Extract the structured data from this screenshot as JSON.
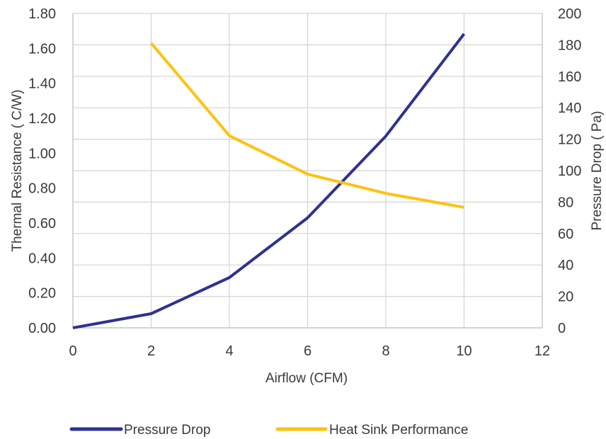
{
  "chart_data": {
    "type": "line",
    "title": "",
    "xlabel": "Airflow (CFM)",
    "ylabel_left": "Thermal Resistance ( C/W)",
    "ylabel_right": "Pressure Drop ( Pa)",
    "xlim": [
      0,
      12
    ],
    "ylim_left": [
      0,
      1.8
    ],
    "ylim_right": [
      0,
      200
    ],
    "x_ticks": [
      "0",
      "2",
      "4",
      "6",
      "8",
      "10",
      "12"
    ],
    "y_left_ticks": [
      "0.00",
      "0.20",
      "0.40",
      "0.60",
      "0.80",
      "1.00",
      "1.20",
      "1.40",
      "1.60",
      "1.80"
    ],
    "y_right_ticks": [
      "0",
      "20",
      "40",
      "60",
      "80",
      "100",
      "120",
      "140",
      "160",
      "180",
      "200"
    ],
    "grid": true,
    "legend_position": "bottom",
    "series": [
      {
        "name": "Pressure Drop",
        "axis": "right",
        "color": "#2e3192",
        "x": [
          0,
          2,
          4,
          6,
          8,
          10
        ],
        "values": [
          0,
          9,
          32,
          70,
          122,
          187
        ]
      },
      {
        "name": "Heat Sink Performance",
        "axis": "left",
        "color": "#ffc20e",
        "x": [
          2,
          4,
          6,
          8,
          10
        ],
        "values": [
          1.63,
          1.1,
          0.88,
          0.77,
          0.69
        ]
      }
    ]
  }
}
